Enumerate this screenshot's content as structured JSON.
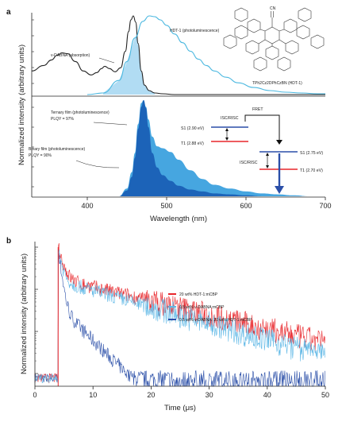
{
  "panel_a": {
    "letter": "a",
    "ylabel": "Normalized intensity (arbitrary units)",
    "xlabel": "Wavelength (nm)",
    "x_ticks": [
      "400",
      "500",
      "600",
      "700"
    ],
    "top": {
      "labels": {
        "abs": "ν-DABNA (absorption)",
        "pl": "HDT-1 (photoluminescence)",
        "molecule": "TPh2Cz2DPhCzBN (HDT-1)",
        "molecule_cn": "CN"
      }
    },
    "bottom": {
      "labels": {
        "ternary_1": "Ternary film (photoluminescence)",
        "ternary_2": "PLQY = 97%",
        "binary_1": "Binary film (photoluminescence)",
        "binary_2": "PLQY = 90%",
        "fret": "FRET",
        "isc_left": "ISC/RISC",
        "isc_right": "ISC/RISC",
        "s1_left": "S1 (2.90 eV)",
        "t1_left": "T1 (2.88 eV)",
        "s1_right": "S1 (2.75 eV)",
        "t1_right": "T1 (2.70 eV)"
      }
    }
  },
  "panel_b": {
    "letter": "b",
    "ylabel": "Normalized intensity (arbitrary units)",
    "xlabel": "Time (μs)",
    "x_ticks": [
      "0",
      "10",
      "20",
      "30",
      "40",
      "50"
    ],
    "legend": [
      {
        "label": "20 wt% HDT-1:mCBP",
        "color": "#e8262b"
      },
      {
        "label": "0.5 wt% ν-DABNA:mCBP",
        "color": "#5fb8e6"
      },
      {
        "label": "0.5 wt% ν-DABNA: 20 wt% HDT-1:mCBP",
        "color": "#2b4fa8"
      }
    ]
  },
  "colors": {
    "abs_line": "#222222",
    "abs_fill": "#a9d8f2",
    "hdt_pl": "#4bb8e0",
    "ternary": "#1c63b8",
    "binary": "#46a6e0",
    "red": "#e8262b",
    "blue_line": "#2b4fa8",
    "light_blue": "#5fb8e6"
  },
  "chart_data": [
    {
      "type": "line",
      "panel": "a-top",
      "xlim": [
        330,
        700
      ],
      "series": [
        {
          "name": "ν-DABNA (absorption)",
          "x": [
            330,
            345,
            355,
            362,
            368,
            375,
            385,
            395,
            405,
            412,
            418,
            422,
            428,
            435,
            442,
            448,
            452,
            455,
            458,
            461,
            464,
            468,
            472,
            478,
            485,
            495,
            510,
            530,
            560,
            600,
            650,
            700
          ],
          "y": [
            0.3,
            0.37,
            0.44,
            0.5,
            0.53,
            0.52,
            0.42,
            0.3,
            0.25,
            0.28,
            0.33,
            0.36,
            0.33,
            0.29,
            0.34,
            0.55,
            0.8,
            0.95,
            1.0,
            0.92,
            0.65,
            0.3,
            0.12,
            0.05,
            0.02,
            0.01,
            0.0,
            0.0,
            0.0,
            0.0,
            0.0,
            0.0
          ]
        },
        {
          "name": "HDT-1 (photoluminescence)",
          "x": [
            400,
            420,
            440,
            450,
            460,
            470,
            478,
            485,
            492,
            500,
            510,
            520,
            530,
            540,
            550,
            560,
            575,
            590,
            610,
            630,
            650,
            670,
            690,
            700
          ],
          "y": [
            0.0,
            0.02,
            0.18,
            0.42,
            0.72,
            0.93,
            1.0,
            0.99,
            0.95,
            0.88,
            0.77,
            0.66,
            0.55,
            0.45,
            0.37,
            0.3,
            0.22,
            0.15,
            0.09,
            0.05,
            0.03,
            0.02,
            0.01,
            0.01
          ]
        }
      ]
    },
    {
      "type": "area",
      "panel": "a-bottom",
      "xlim": [
        330,
        700
      ],
      "series": [
        {
          "name": "Ternary film (photoluminescence)",
          "x": [
            440,
            450,
            456,
            460,
            464,
            468,
            471,
            474,
            477,
            482,
            488,
            495,
            505,
            515,
            530,
            545,
            560,
            580,
            600,
            620,
            640,
            660,
            680,
            700
          ],
          "y": [
            0.0,
            0.08,
            0.25,
            0.45,
            0.75,
            0.97,
            1.0,
            0.93,
            0.8,
            0.62,
            0.52,
            0.5,
            0.46,
            0.38,
            0.27,
            0.18,
            0.12,
            0.08,
            0.05,
            0.03,
            0.02,
            0.01,
            0.0,
            0.0
          ]
        },
        {
          "name": "Binary film (photoluminescence)",
          "x": [
            440,
            450,
            456,
            460,
            464,
            468,
            471,
            474,
            477,
            482,
            488,
            495,
            505,
            515,
            530,
            545,
            560,
            580,
            600,
            620,
            640,
            660,
            680,
            700
          ],
          "y": [
            0.0,
            0.06,
            0.2,
            0.4,
            0.7,
            0.93,
            1.0,
            0.92,
            0.72,
            0.45,
            0.3,
            0.22,
            0.16,
            0.11,
            0.07,
            0.05,
            0.03,
            0.02,
            0.01,
            0.0,
            0.0,
            0.0,
            0.0,
            0.0
          ]
        }
      ]
    },
    {
      "type": "line",
      "panel": "b",
      "xlim": [
        0,
        50
      ],
      "log_y": true,
      "onset": 4,
      "series": [
        {
          "name": "20 wt% HDT-1:mCBP",
          "tau_fast": 0.7,
          "amp_fast": 0.82,
          "tau_slow": 13,
          "noise_floor": 0.0035
        },
        {
          "name": "0.5 wt% ν-DABNA:mCBP",
          "tau_fast": 0.5,
          "amp_fast": 0.84,
          "tau_slow": 11,
          "noise_floor": 0.003
        },
        {
          "name": "0.5 wt% ν-DABNA: 20 wt% HDT-1:mCBP",
          "tau_fast": 0.4,
          "amp_fast": 0.96,
          "tau_slow": 3.2,
          "noise_floor": 0.0007
        }
      ]
    }
  ]
}
